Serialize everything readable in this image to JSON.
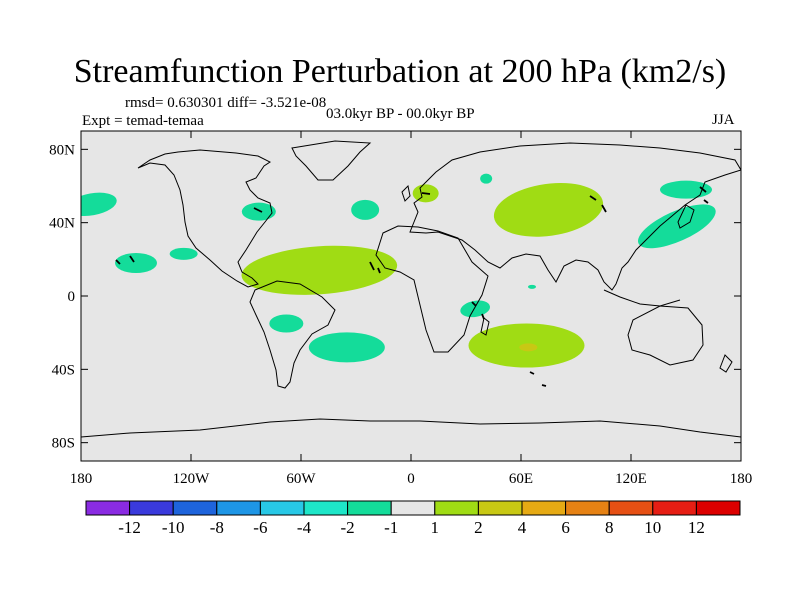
{
  "title": "Streamfunction Perturbation at 200 hPa (km2/s)",
  "stats": "rmsd= 0.630301 diff= -3.521e-08",
  "experiment": "Expt = temad-temaa",
  "period": "03.0kyr BP - 00.0kyr BP",
  "season": "JJA",
  "map": {
    "lat_ticks": [
      "80N",
      "40N",
      "0",
      "40S",
      "80S"
    ],
    "lon_ticks": [
      "180",
      "120W",
      "60W",
      "0",
      "60E",
      "120E",
      "180"
    ],
    "lat_range": [
      -90,
      90
    ],
    "lon_range": [
      -180,
      180
    ],
    "background_color": "#e6e6e6"
  },
  "colorbar": {
    "labels": [
      "-12",
      "-10",
      "-8",
      "-6",
      "-4",
      "-2",
      "-1",
      "1",
      "2",
      "4",
      "6",
      "8",
      "10",
      "12"
    ],
    "colors": [
      "#8a2be2",
      "#3a3adc",
      "#1e64dc",
      "#1e96e6",
      "#28c8e6",
      "#1ee6c8",
      "#14dc9a",
      "#e6e6e6",
      "#a0dc14",
      "#c8c814",
      "#e6aa14",
      "#e68214",
      "#e65014",
      "#e61e14",
      "#dc0000"
    ]
  },
  "anomalies": [
    {
      "name": "anomaly-north-atlantic-positive",
      "lon": -50,
      "lat": 14,
      "value": 1.5
    },
    {
      "name": "anomaly-central-asia-positive",
      "lon": 75,
      "lat": 47,
      "value": 1.5
    },
    {
      "name": "anomaly-south-indian-ocean-positive",
      "lon": 63,
      "lat": -27,
      "value": 1.5
    },
    {
      "name": "anomaly-south-indian-ocean-core",
      "lon": 64,
      "lat": -28,
      "value": 3
    },
    {
      "name": "anomaly-europe-positive",
      "lon": 8,
      "lat": 56,
      "value": 1.5
    },
    {
      "name": "anomaly-north-pacific-east-negative",
      "lon": -174,
      "lat": 50,
      "value": -1.5
    },
    {
      "name": "anomaly-east-pacific-negative",
      "lon": -150,
      "lat": 18,
      "value": -1.5
    },
    {
      "name": "anomaly-east-pacific-small-negative",
      "lon": -124,
      "lat": 23,
      "value": -1.5
    },
    {
      "name": "anomaly-great-lakes-negative",
      "lon": -83,
      "lat": 46,
      "value": -1.5
    },
    {
      "name": "anomaly-mid-atlantic-negative",
      "lon": -25,
      "lat": 47,
      "value": -1.5
    },
    {
      "name": "anomaly-east-europe-negative",
      "lon": 41,
      "lat": 64,
      "value": -1.5
    },
    {
      "name": "anomaly-west-pacific-negative",
      "lon": 145,
      "lat": 38,
      "value": -1.5
    },
    {
      "name": "anomaly-northeast-asia-negative",
      "lon": 150,
      "lat": 58,
      "value": -1.5
    },
    {
      "name": "anomaly-africa-negative",
      "lon": 35,
      "lat": -7,
      "value": -1.5
    },
    {
      "name": "anomaly-arabian-sea-negative",
      "lon": 66,
      "lat": 5,
      "value": -1.5
    },
    {
      "name": "anomaly-south-america-negative",
      "lon": -68,
      "lat": -15,
      "value": -1.5
    },
    {
      "name": "anomaly-south-atlantic-negative",
      "lon": -35,
      "lat": -28,
      "value": -1.5
    }
  ]
}
